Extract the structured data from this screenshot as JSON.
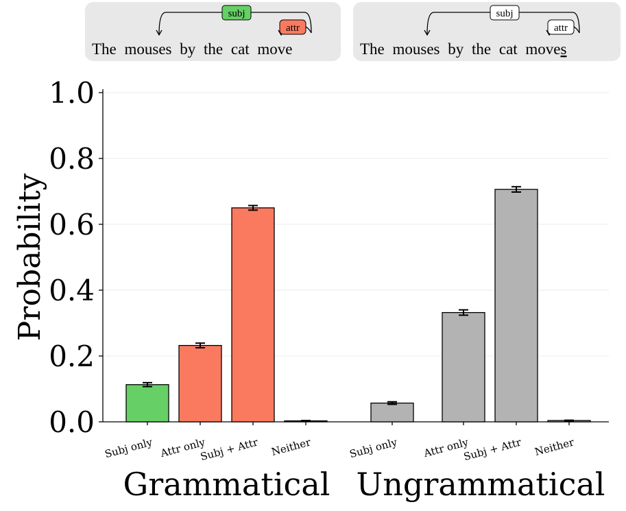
{
  "chart_data": {
    "type": "bar",
    "ylabel": "Probability",
    "ylim": [
      0,
      1
    ],
    "yticks": [
      {
        "value": 0,
        "label": "0.0"
      },
      {
        "value": 0.2,
        "label": "0.2"
      },
      {
        "value": 0.4,
        "label": "0.4"
      },
      {
        "value": 0.6,
        "label": "0.6"
      },
      {
        "value": 0.8,
        "label": "0.8"
      },
      {
        "value": 1,
        "label": "1.0"
      }
    ],
    "categories": [
      "Subj only",
      "Attr only",
      "Subj + Attr",
      "Neither"
    ],
    "groups": [
      {
        "name": "Grammatical",
        "values": [
          0.113,
          0.232,
          0.65,
          0.003
        ],
        "errors": [
          0.006,
          0.007,
          0.007,
          0.001
        ],
        "colors": [
          "#66d066",
          "#fa7a60",
          "#fa7a60",
          "#fa7a60"
        ]
      },
      {
        "name": "Ungrammatical",
        "values": [
          0.057,
          0.332,
          0.706,
          0.004
        ],
        "errors": [
          0.004,
          0.008,
          0.008,
          0.001
        ],
        "colors": [
          "#b3b3b3",
          "#b3b3b3",
          "#b3b3b3",
          "#b3b3b3"
        ]
      }
    ],
    "panels": [
      {
        "sentence": "The mouses by the cat move",
        "subj": "subj",
        "attr": "attr",
        "subj_color": "#66d066",
        "attr_color": "#fa7a60"
      },
      {
        "sentence": "The mouses by the cat move",
        "suffix": "s",
        "subj": "subj",
        "attr": "attr",
        "subj_color": "#ffffff",
        "attr_color": "#ffffff"
      }
    ]
  }
}
